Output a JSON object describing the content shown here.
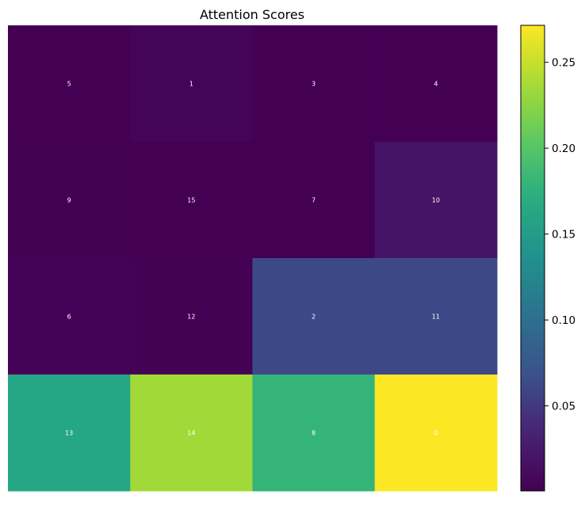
{
  "chart_data": {
    "type": "heatmap",
    "title": "Attention Scores",
    "colormap": "viridis",
    "rows": 4,
    "cols": 4,
    "values": [
      [
        0.0008,
        0.004,
        0.0006,
        0.001
      ],
      [
        0.0012,
        0.001,
        0.0005,
        0.02
      ],
      [
        0.003,
        0.002,
        0.062,
        0.062
      ],
      [
        0.162,
        0.235,
        0.18,
        0.271
      ]
    ],
    "cell_labels": [
      [
        "5",
        "1",
        "3",
        "4"
      ],
      [
        "9",
        "15",
        "7",
        "10"
      ],
      [
        "6",
        "12",
        "2",
        "11"
      ],
      [
        "13",
        "14",
        "8",
        "0"
      ]
    ],
    "colorbar": {
      "min": 0.0005,
      "max": 0.2715,
      "ticks": [
        0.05,
        0.1,
        0.15,
        0.2,
        0.25
      ],
      "tick_labels": [
        "0.05",
        "0.10",
        "0.15",
        "0.20",
        "0.25"
      ]
    },
    "xlabel": "",
    "ylabel": ""
  }
}
